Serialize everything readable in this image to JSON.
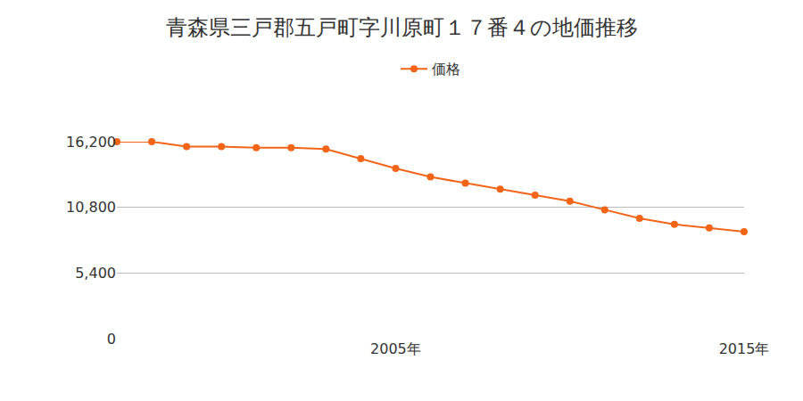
{
  "chart_data": {
    "type": "line",
    "title": "青森県三戸郡五戸町字川原町１７番４の地価推移",
    "categories": [
      null,
      null,
      null,
      null,
      null,
      null,
      null,
      null,
      "2005年",
      null,
      null,
      null,
      null,
      null,
      null,
      null,
      null,
      null,
      "2015年"
    ],
    "series": [
      {
        "name": "価格",
        "color": "#f26418",
        "marker": "circle",
        "values": [
          16200,
          16200,
          15800,
          15800,
          15700,
          15700,
          15600,
          14800,
          14000,
          13300,
          12800,
          12300,
          11800,
          11300,
          10600,
          9900,
          9400,
          9100,
          8800
        ]
      }
    ],
    "ylim": [
      0,
      16200
    ],
    "yticks": [
      0,
      {
        "value": 5400,
        "label": "5,400"
      },
      {
        "value": 10800,
        "label": "10,800"
      },
      {
        "value": 16200,
        "label": "16,200"
      }
    ],
    "grid": true,
    "legend": "top"
  }
}
